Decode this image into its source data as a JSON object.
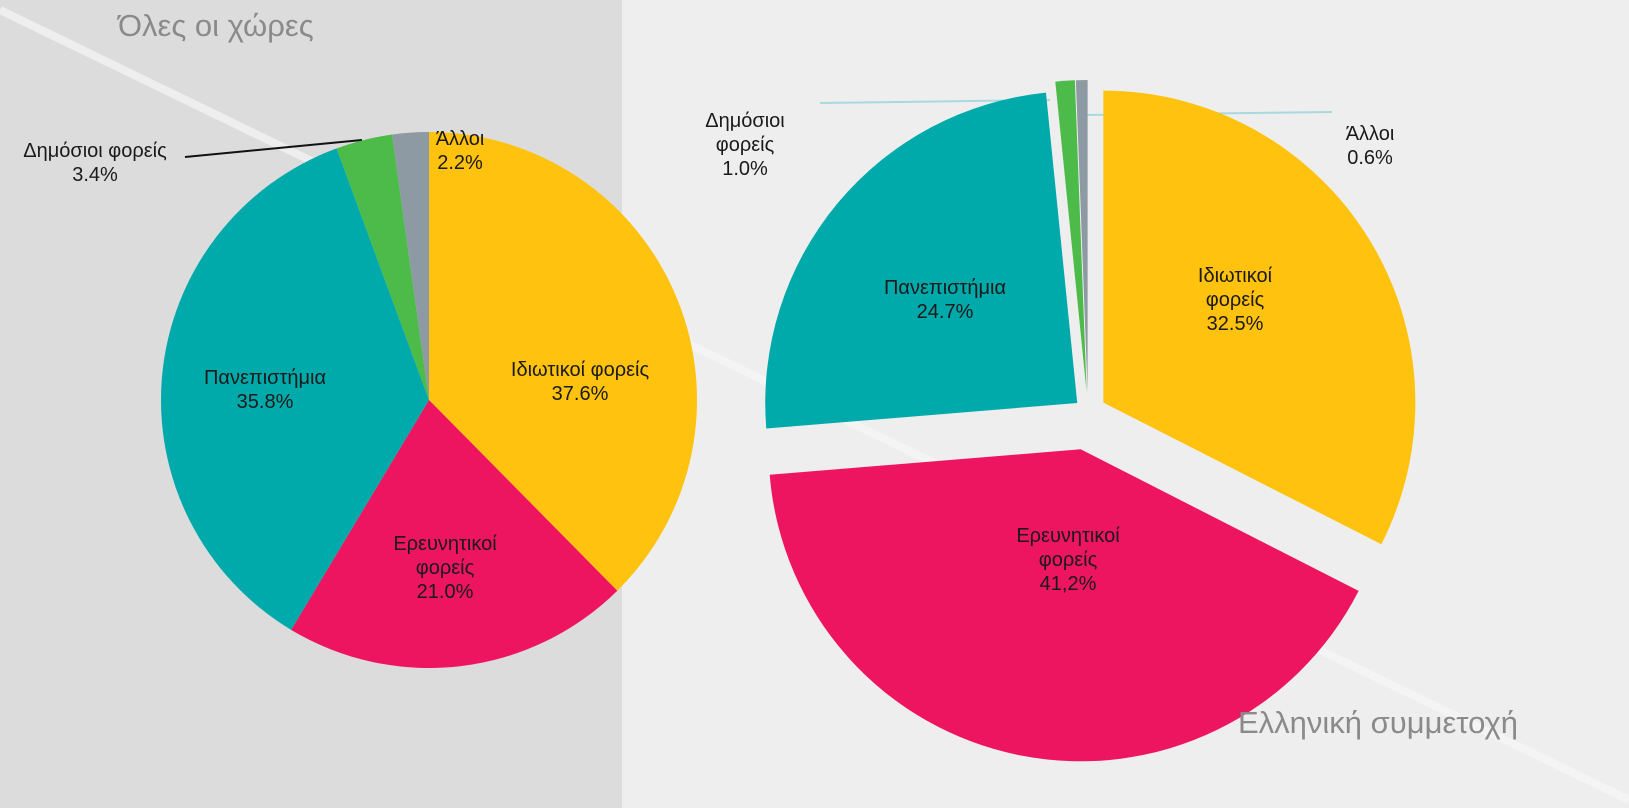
{
  "chart_data": [
    {
      "type": "pie",
      "title": "Όλες οι χώρες",
      "categories": [
        "Ιδιωτικοί φορείς",
        "Ερευνητικοί φορείς",
        "Πανεπιστήμια",
        "Δημόσιοι φορείς",
        "Άλλοι"
      ],
      "values": [
        37.6,
        21.0,
        35.8,
        3.4,
        2.2
      ],
      "value_labels": [
        "37.6%",
        "21.0%",
        "35.8%",
        "3.4%",
        "2.2%"
      ],
      "colors": [
        "#FFC20E",
        "#EE1560",
        "#00A9AA",
        "#4DBB4A",
        "#8E9AA3"
      ]
    },
    {
      "type": "pie",
      "title": "Ελληνική συμμετοχή",
      "categories": [
        "Ιδιωτικοί φορείς",
        "Ερευνητικοί φορείς",
        "Πανεπιστήμια",
        "Δημόσιοι φορείς",
        "Άλλοι"
      ],
      "values": [
        32.5,
        41.2,
        24.7,
        1.0,
        0.6
      ],
      "value_labels": [
        "32.5%",
        "41,2%",
        "24.7%",
        "1.0%",
        "0.6%"
      ],
      "colors": [
        "#FFC20E",
        "#EE1560",
        "#00A9AA",
        "#4DBB4A",
        "#8E9AA3"
      ]
    }
  ]
}
